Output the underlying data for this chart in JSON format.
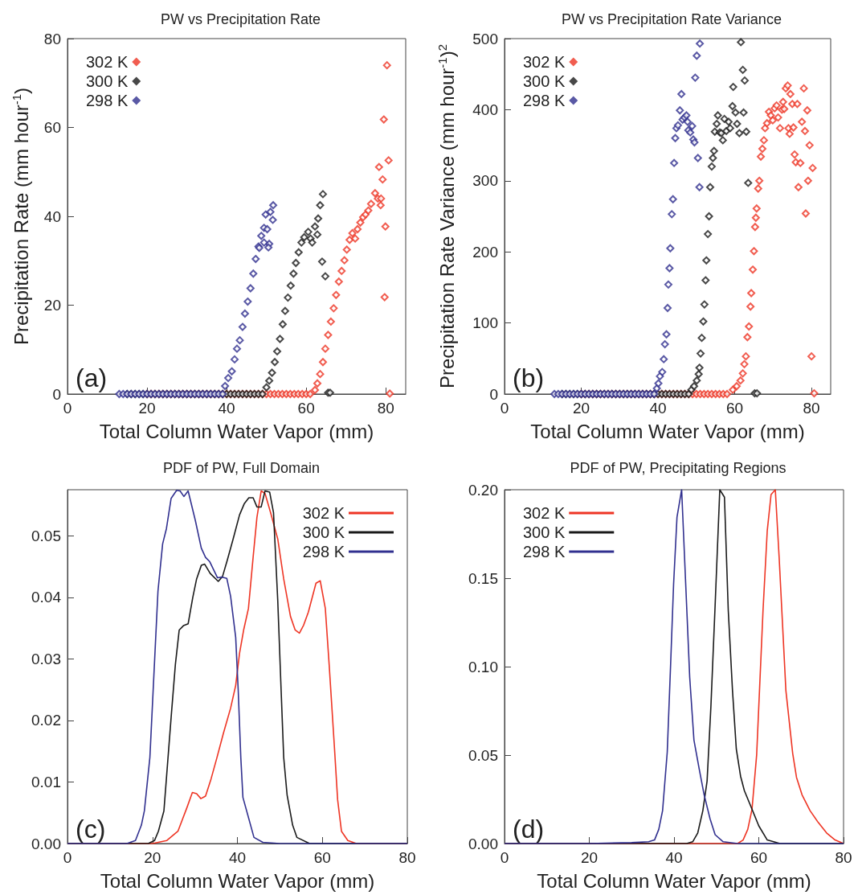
{
  "chart_data": [
    {
      "type": "scatter",
      "title": "PW vs Precipitation Rate",
      "xlabel": "Total Column Water Vapor (mm)",
      "ylabel": "Precipitation Rate (mm hour$^{-1}$)",
      "annotations": [
        "(a)"
      ],
      "xlim": [
        0,
        85
      ],
      "xticks": [
        0,
        20,
        40,
        60,
        80
      ],
      "ylim": [
        0,
        80
      ],
      "yticks": [
        0,
        20,
        40,
        60,
        80
      ],
      "grid": false,
      "legend": "top left",
      "marker": "diamond",
      "series": [
        {
          "name": "302 K",
          "color": "#ee3524",
          "x": [
            20,
            21,
            22,
            23,
            24,
            25,
            26,
            27,
            28,
            29,
            30,
            31,
            32,
            33,
            34,
            35,
            36,
            37,
            38,
            39,
            40,
            41,
            42,
            43,
            44,
            45,
            46,
            47,
            48,
            49,
            50,
            51,
            52,
            53,
            54,
            55,
            56,
            57,
            58,
            59,
            60,
            61,
            62.2,
            62.8,
            63.5,
            64.2,
            64.8,
            65.5,
            66.2,
            66.9,
            67.5,
            68.2,
            68.9,
            69.6,
            70.2,
            70.9,
            71.6,
            72.3,
            72.9,
            73.6,
            74.3,
            74.9,
            75.6,
            76.3,
            77.3,
            78.0,
            78.8,
            78.7,
            78.3,
            79.2,
            79.5,
            80.3,
            80.7,
            79.9,
            79.7,
            81.0
          ],
          "values": [
            0,
            0,
            0,
            0,
            0,
            0,
            0,
            0,
            0,
            0,
            0,
            0,
            0,
            0,
            0,
            0,
            0,
            0,
            0,
            0,
            0,
            0,
            0,
            0,
            0,
            0,
            0,
            0,
            0,
            0,
            0,
            0,
            0,
            0,
            0,
            0,
            0,
            0,
            0,
            0,
            0,
            0,
            0.9,
            2.4,
            4.5,
            7.2,
            10.2,
            13.3,
            16.3,
            19.3,
            22.3,
            25.3,
            27.7,
            30.1,
            32.5,
            34.7,
            36.2,
            35.0,
            37.1,
            38.6,
            39.8,
            40.4,
            41.3,
            42.8,
            45.2,
            44.0,
            44.0,
            42.5,
            51.1,
            48.3,
            61.8,
            74.0,
            52.6,
            37.7,
            21.8,
            0.1
          ]
        },
        {
          "name": "300 K",
          "color": "#1a1a1a",
          "x": [
            15,
            16,
            17,
            18,
            19,
            20,
            21,
            22,
            23,
            24,
            25,
            26,
            27,
            28,
            29,
            30,
            31,
            32,
            33,
            34,
            35,
            36,
            37,
            38,
            39,
            40,
            41,
            42,
            43,
            44,
            45,
            46,
            47,
            48,
            49,
            50.0,
            50.7,
            51.4,
            52.1,
            52.7,
            53.4,
            54.1,
            54.7,
            55.4,
            56.1,
            56.8,
            57.4,
            58.1,
            58.8,
            59.5,
            60.5,
            61.1,
            61.5,
            62.2,
            62.8,
            63.0,
            63.5,
            64.2,
            64.0,
            64.8,
            65.5,
            66.0
          ],
          "values": [
            0,
            0,
            0,
            0,
            0,
            0,
            0,
            0,
            0,
            0,
            0,
            0,
            0,
            0,
            0,
            0,
            0,
            0,
            0,
            0,
            0,
            0,
            0,
            0,
            0,
            0,
            0,
            0,
            0,
            0,
            0,
            0,
            0,
            0,
            0,
            1.5,
            3.0,
            4.8,
            7.2,
            9.6,
            12.4,
            15.7,
            18.7,
            21.7,
            24.4,
            27.1,
            29.5,
            31.9,
            34.1,
            35.3,
            36.5,
            35.0,
            34.1,
            37.7,
            35.9,
            39.5,
            42.5,
            45.0,
            29.8,
            26.5,
            0.3,
            0.3
          ]
        },
        {
          "name": "298 K",
          "color": "#31308f",
          "x": [
            13,
            14,
            15,
            16,
            17,
            18,
            19,
            20,
            21,
            22,
            23,
            24,
            25,
            26,
            27,
            28,
            29,
            30,
            31,
            32,
            33,
            34,
            35,
            36,
            37,
            38,
            39,
            39.6,
            40.4,
            41.3,
            42.0,
            42.6,
            43.3,
            44.0,
            44.6,
            45.3,
            46.0,
            46.7,
            47.3,
            48.0,
            48.7,
            49.4,
            49.8,
            51.0,
            51.7,
            51.6,
            50.2,
            50.7,
            50.5,
            49.4,
            48.2
          ],
          "values": [
            0,
            0,
            0,
            0,
            0,
            0,
            0,
            0,
            0,
            0,
            0,
            0,
            0,
            0,
            0,
            0,
            0,
            0,
            0,
            0,
            0,
            0,
            0,
            0,
            0,
            0,
            0,
            1.8,
            3.6,
            5.1,
            7.8,
            10.2,
            12.1,
            15.1,
            18.1,
            20.8,
            23.8,
            27.1,
            30.4,
            33.2,
            35.6,
            37.4,
            40.4,
            41.0,
            42.5,
            39.2,
            37.1,
            33.8,
            33.0,
            34.1,
            32.9
          ]
        }
      ]
    },
    {
      "type": "scatter",
      "title": "PW vs Precipitation Rate Variance",
      "xlabel": "Total Column Water Vapor (mm)",
      "ylabel": "Precipitation Rate Variance (mm hour$^{-1}$)$^{2}$",
      "annotations": [
        "(b)"
      ],
      "xlim": [
        0,
        85
      ],
      "xticks": [
        0,
        20,
        40,
        60,
        80
      ],
      "ylim": [
        0,
        500
      ],
      "yticks": [
        0,
        100,
        200,
        300,
        400,
        500
      ],
      "grid": false,
      "legend": "top left",
      "marker": "diamond",
      "series": [
        {
          "name": "302 K",
          "color": "#ee3524",
          "x": [
            20,
            21,
            22,
            23,
            24,
            25,
            26,
            27,
            28,
            29,
            30,
            31,
            32,
            33,
            34,
            35,
            36,
            37,
            38,
            39,
            40,
            41,
            42,
            43,
            44,
            45,
            46,
            47,
            48,
            49,
            50,
            51,
            52,
            53,
            54,
            55,
            56,
            57,
            58,
            59.5,
            60.5,
            61.5,
            62.1,
            62.5,
            62.9,
            63.3,
            63.7,
            64.1,
            64.3,
            64.7,
            65.0,
            65.3,
            65.5,
            65.7,
            66.1,
            66.4,
            66.8,
            67.2,
            67.6,
            67.9,
            68.4,
            68.9,
            69.4,
            69.9,
            70.4,
            70.9,
            71.3,
            71.8,
            72.3,
            72.6,
            72.9,
            73.3,
            73.8,
            74.0,
            74.3,
            74.5,
            75.0,
            75.3,
            75.6,
            75.9,
            76.3,
            76.6,
            77.1,
            77.5,
            78.0,
            78.3,
            78.5,
            78.9,
            79.1,
            79.5,
            80.0,
            80.3,
            80.7
          ],
          "values": [
            0,
            0,
            0,
            0,
            0,
            0,
            0,
            0,
            0,
            0,
            0,
            0,
            0,
            0,
            0,
            0,
            0,
            0,
            0,
            0,
            0,
            0,
            0,
            0,
            0,
            0,
            0,
            0,
            0,
            0,
            0,
            0,
            0,
            0,
            0,
            0,
            0,
            0,
            0,
            6,
            11,
            19,
            29,
            42,
            53,
            80,
            95,
            123,
            142,
            175,
            201,
            235,
            248,
            261,
            289,
            300,
            334,
            345,
            357,
            374,
            381,
            397,
            392,
            385,
            402,
            406,
            389,
            374,
            400,
            411,
            401,
            430,
            434,
            374,
            366,
            422,
            408,
            375,
            337,
            326,
            408,
            291,
            325,
            383,
            430,
            370,
            254,
            399,
            300,
            350,
            53,
            318,
            1
          ]
        },
        {
          "name": "300 K",
          "color": "#1a1a1a",
          "x": [
            15,
            16,
            17,
            18,
            19,
            20,
            21,
            22,
            23,
            24,
            25,
            26,
            27,
            28,
            29,
            30,
            31,
            32,
            33,
            34,
            35,
            36,
            37,
            38,
            39,
            40,
            41,
            42,
            43,
            44,
            45,
            46,
            47,
            48,
            48.7,
            49.4,
            50.1,
            50.6,
            50.8,
            51.1,
            51.4,
            51.8,
            52.1,
            52.4,
            52.6,
            53.0,
            53.3,
            53.6,
            54.0,
            54.3,
            54.6,
            54.8,
            55.3,
            55.6,
            56.1,
            56.5,
            56.9,
            57.3,
            57.8,
            58.4,
            58.8,
            59.4,
            59.6,
            60.2,
            60.6,
            61.2,
            61.6,
            62.1,
            62.3,
            62.6,
            63.0,
            63.5,
            65.2,
            65.8
          ],
          "values": [
            0,
            0,
            0,
            0,
            0,
            0,
            0,
            0,
            0,
            0,
            0,
            0,
            0,
            0,
            0,
            0,
            0,
            0,
            0,
            0,
            0,
            0,
            0,
            0,
            0,
            0,
            0,
            0,
            0,
            0,
            0,
            0,
            0,
            0,
            6,
            11,
            19,
            28,
            37,
            57,
            79,
            102,
            126,
            160,
            188,
            225,
            250,
            291,
            320,
            332,
            342,
            369,
            380,
            392,
            368,
            367,
            357,
            387,
            370,
            383,
            374,
            405,
            432,
            396,
            380,
            367,
            495,
            456,
            396,
            441,
            369,
            297,
            1,
            1
          ]
        },
        {
          "name": "298 K",
          "color": "#31308f",
          "x": [
            13,
            14,
            15,
            16,
            17,
            18,
            19,
            20,
            21,
            22,
            23,
            24,
            25,
            26,
            27,
            28,
            29,
            30,
            31,
            32,
            33,
            34,
            35,
            36,
            37,
            38,
            39,
            39.7,
            40.1,
            40.5,
            41.1,
            41.5,
            41.8,
            42.2,
            42.5,
            42.7,
            43.0,
            43.2,
            43.6,
            43.9,
            44.2,
            44.5,
            44.8,
            45.2,
            45.7,
            46.1,
            46.4,
            46.9,
            47.4,
            47.7,
            47.9,
            48.4,
            48.9,
            49.2,
            49.5,
            49.7,
            50.1,
            50.4,
            50.8,
            50.9
          ],
          "values": [
            0,
            0,
            0,
            0,
            0,
            0,
            0,
            0,
            0,
            0,
            0,
            0,
            0,
            0,
            0,
            0,
            0,
            0,
            0,
            0,
            0,
            0,
            0,
            0,
            0,
            0,
            0,
            8,
            15,
            25,
            31,
            49,
            70,
            84,
            121,
            154,
            177,
            205,
            253,
            274,
            325,
            360,
            374,
            378,
            399,
            422,
            386,
            389,
            392,
            383,
            371,
            368,
            377,
            358,
            354,
            445,
            476,
            332,
            291,
            493
          ]
        }
      ]
    },
    {
      "type": "line",
      "title": "PDF of PW, Full Domain",
      "xlabel": "Total Column Water Vapor (mm)",
      "annotations": [
        "(c)"
      ],
      "xlim": [
        0,
        80
      ],
      "xticks": [
        0,
        20,
        40,
        60,
        80
      ],
      "ylim": [
        0,
        0.0575
      ],
      "yticks": [
        {
          "value": 0,
          "label": "0.00"
        },
        {
          "value": 0.01,
          "label": "0.01"
        },
        {
          "value": 0.02,
          "label": "0.02"
        },
        {
          "value": 0.03,
          "label": "0.03"
        },
        {
          "value": 0.04,
          "label": "0.04"
        },
        {
          "value": 0.05,
          "label": "0.05"
        }
      ],
      "grid": false,
      "legend": "top right",
      "marker": "none",
      "line_style": "solid",
      "series": [
        {
          "name": "302 K",
          "color": "#ee3524",
          "x": [
            0,
            10,
            20,
            23.4,
            26,
            28.1,
            29.4,
            30.4,
            31.4,
            32.5,
            33.8,
            35.2,
            36.7,
            38.4,
            39.6,
            40.5,
            41.5,
            42.6,
            43.7,
            44.6,
            45.6,
            46.5,
            47.8,
            49.5,
            50.9,
            52.5,
            53.6,
            54.6,
            55.6,
            56.7,
            58.5,
            59.5,
            60.7,
            61.6,
            62.8,
            63.6,
            64.5,
            66,
            68,
            70,
            80
          ],
          "values": [
            0,
            0,
            0,
            0.0005,
            0.002,
            0.0058,
            0.0083,
            0.0081,
            0.0073,
            0.0077,
            0.0105,
            0.014,
            0.0179,
            0.022,
            0.0257,
            0.0309,
            0.0348,
            0.0382,
            0.0465,
            0.053,
            0.0573,
            0.0569,
            0.0538,
            0.0495,
            0.043,
            0.0369,
            0.0347,
            0.0342,
            0.0355,
            0.0376,
            0.0423,
            0.0427,
            0.0382,
            0.0291,
            0.0161,
            0.0071,
            0.002,
            0.0005,
            0,
            0,
            0
          ]
        },
        {
          "name": "300 K",
          "color": "#1a1a1a",
          "x": [
            0,
            10,
            19,
            20.5,
            21.4,
            22.7,
            24.4,
            25.4,
            26.3,
            27.3,
            28.4,
            29.5,
            30.4,
            31.5,
            32.3,
            33.6,
            35.5,
            36.5,
            37.6,
            39.0,
            40.5,
            41.6,
            42.7,
            43.7,
            44.6,
            45.6,
            46.5,
            47.6,
            48.5,
            49.5,
            50.3,
            50.9,
            51.7,
            53,
            54,
            57,
            60,
            70,
            80
          ],
          "values": [
            0,
            0,
            0,
            0.0005,
            0.002,
            0.0053,
            0.0205,
            0.0291,
            0.0347,
            0.0354,
            0.0357,
            0.04,
            0.043,
            0.0452,
            0.0454,
            0.0439,
            0.0426,
            0.0434,
            0.046,
            0.0495,
            0.0534,
            0.0552,
            0.0562,
            0.0562,
            0.0547,
            0.0547,
            0.0573,
            0.0571,
            0.0538,
            0.0395,
            0.0248,
            0.014,
            0.0079,
            0.003,
            0.001,
            0,
            0,
            0,
            0
          ]
        },
        {
          "name": "298 K",
          "color": "#31308f",
          "x": [
            0,
            10,
            14,
            16,
            17.4,
            18.1,
            19.4,
            21.3,
            22.4,
            23.3,
            24.4,
            25.7,
            26.5,
            27.4,
            28.4,
            30.1,
            31.5,
            32.5,
            33.5,
            35.3,
            36.4,
            37.5,
            38.4,
            39.6,
            40.2,
            40.8,
            41.3,
            43.9,
            46,
            50,
            60,
            70,
            80
          ],
          "values": [
            0,
            0,
            0,
            0.0005,
            0.003,
            0.0053,
            0.014,
            0.041,
            0.0487,
            0.0512,
            0.0561,
            0.0574,
            0.0573,
            0.0564,
            0.0573,
            0.0525,
            0.048,
            0.0465,
            0.0458,
            0.0432,
            0.0433,
            0.0431,
            0.0402,
            0.0335,
            0.0248,
            0.014,
            0.0075,
            0.001,
            0.0002,
            0,
            0,
            0,
            0
          ]
        }
      ]
    },
    {
      "type": "line",
      "title": "PDF of PW, Precipitating Regions",
      "xlabel": "Total Column Water Vapor (mm)",
      "annotations": [
        "(d)"
      ],
      "xlim": [
        0,
        80
      ],
      "xticks": [
        0,
        20,
        40,
        60,
        80
      ],
      "ylim": [
        0,
        0.2
      ],
      "yticks": [
        {
          "value": 0,
          "label": "0.00"
        },
        {
          "value": 0.05,
          "label": "0.05"
        },
        {
          "value": 0.1,
          "label": "0.10"
        },
        {
          "value": 0.15,
          "label": "0.15"
        },
        {
          "value": 0.2,
          "label": "0.20"
        }
      ],
      "grid": false,
      "legend": "top left",
      "marker": "none",
      "line_style": "solid",
      "series": [
        {
          "name": "302 K",
          "color": "#ee3524",
          "x": [
            0,
            40,
            55,
            56.3,
            57.4,
            58.4,
            59.5,
            61.0,
            62.0,
            62.9,
            63.9,
            64.8,
            66.4,
            68.0,
            68.9,
            70.2,
            72.1,
            74,
            76,
            78,
            80
          ],
          "values": [
            0,
            0,
            0,
            0.002,
            0.008,
            0.0193,
            0.0502,
            0.1317,
            0.1769,
            0.1973,
            0.2,
            0.1619,
            0.0864,
            0.051,
            0.0374,
            0.0276,
            0.0186,
            0.012,
            0.006,
            0.002,
            0
          ]
        },
        {
          "name": "300 K",
          "color": "#1a1a1a",
          "x": [
            0,
            30,
            43,
            44.4,
            45.6,
            46.8,
            47.8,
            48.7,
            49.7,
            50.8,
            51.9,
            52.8,
            53.8,
            54.7,
            55.7,
            56.6,
            58.3,
            60,
            62,
            65,
            70,
            80
          ],
          "values": [
            0,
            0,
            0,
            0.001,
            0.006,
            0.0186,
            0.0353,
            0.0774,
            0.1348,
            0.2,
            0.1958,
            0.1317,
            0.0864,
            0.0533,
            0.0381,
            0.0299,
            0.02,
            0.01,
            0.002,
            0,
            0,
            0
          ]
        },
        {
          "name": "298 K",
          "color": "#31308f",
          "x": [
            0,
            20,
            30,
            34,
            35.4,
            36.4,
            37.3,
            38.4,
            39.2,
            39.9,
            40.7,
            41.8,
            42.7,
            43.7,
            44.7,
            45.9,
            47.1,
            48.5,
            49.7,
            51.6,
            55,
            60,
            70,
            80
          ],
          "values": [
            0,
            0,
            0.0005,
            0.001,
            0.002,
            0.008,
            0.0186,
            0.0517,
            0.1015,
            0.1467,
            0.1845,
            0.2,
            0.1498,
            0.094,
            0.0585,
            0.0427,
            0.0276,
            0.014,
            0.005,
            0.001,
            0,
            0,
            0,
            0
          ]
        }
      ]
    }
  ]
}
